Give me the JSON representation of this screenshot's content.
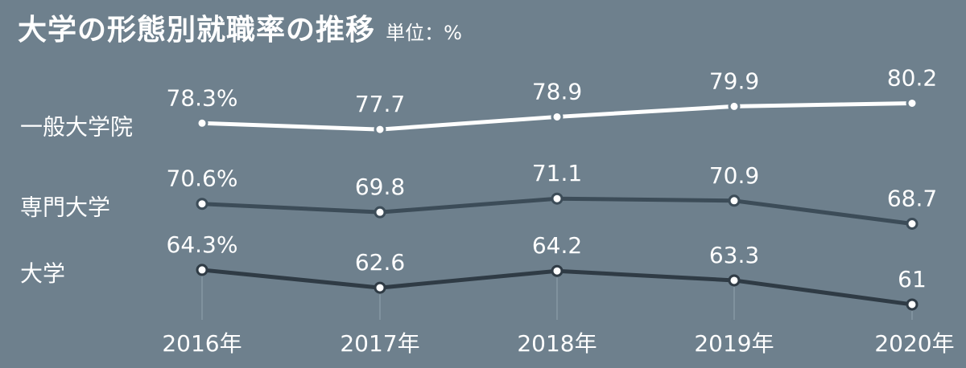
{
  "header": {
    "title": "大学の形態別就職率の推移",
    "unit": "単位：%"
  },
  "colors": {
    "background": "#6e808d",
    "graduate_school": "#ffffff",
    "professional_university": "#3c4c58",
    "university": "#2f3b45"
  },
  "chart_data": {
    "type": "line",
    "categories": [
      "2016年",
      "2017年",
      "2018年",
      "2019年",
      "2020年"
    ],
    "series": [
      {
        "name": "一般大学院",
        "values": [
          78.3,
          77.7,
          78.9,
          79.9,
          80.2
        ],
        "labels": [
          "78.3%",
          "77.7",
          "78.9",
          "79.9",
          "80.2"
        ]
      },
      {
        "name": "専門大学",
        "values": [
          70.6,
          69.8,
          71.1,
          70.9,
          68.7
        ],
        "labels": [
          "70.6%",
          "69.8",
          "71.1",
          "70.9",
          "68.7"
        ]
      },
      {
        "name": "大学",
        "values": [
          64.3,
          62.6,
          64.2,
          63.3,
          61
        ],
        "labels": [
          "64.3%",
          "62.6",
          "64.2",
          "63.3",
          "61"
        ]
      }
    ],
    "ylim": [
      60,
      82
    ],
    "grid": false,
    "legend": "left-inline"
  }
}
